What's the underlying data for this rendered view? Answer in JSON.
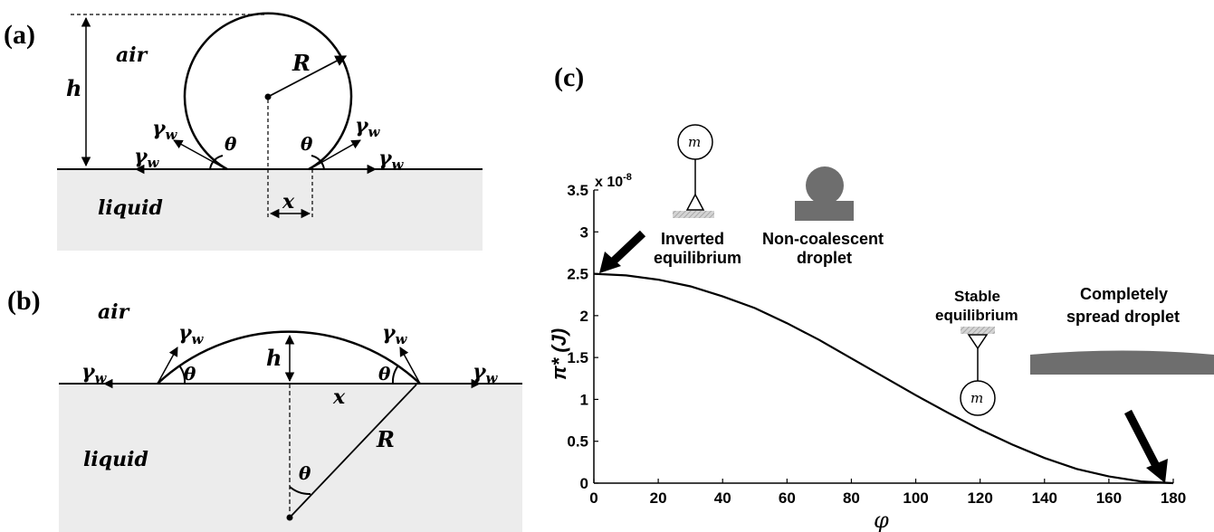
{
  "panels": {
    "a": {
      "label": "(a)",
      "air": "air",
      "liquid": "liquid",
      "h": "h",
      "R": "R",
      "x": "x",
      "theta": "θ",
      "gamma": "γ",
      "gamma_sub": "w"
    },
    "b": {
      "label": "(b)",
      "air": "air",
      "liquid": "liquid",
      "h": "h",
      "R": "R",
      "x": "x",
      "theta": "θ",
      "gamma": "γ",
      "gamma_sub": "w"
    },
    "c": {
      "label": "(c)",
      "inverted_line1": "Inverted",
      "inverted_line2": "equilibrium",
      "noncoal_line1": "Non-coalescent",
      "noncoal_line2": "droplet",
      "stable_line1": "Stable",
      "stable_line2": "equilibrium",
      "spread_line1": "Completely",
      "spread_line2": "spread droplet",
      "mass": "m"
    }
  },
  "chart_data": {
    "type": "line",
    "xlabel": "φ",
    "ylabel": "π* (J)",
    "y_multiplier": "x 10",
    "y_multiplier_exp": "-8",
    "xlim": [
      0,
      180
    ],
    "ylim": [
      0,
      3.5
    ],
    "xticks": [
      "0",
      "20",
      "40",
      "60",
      "80",
      "100",
      "120",
      "140",
      "160",
      "180"
    ],
    "yticks": [
      "0",
      "0.5",
      "1",
      "1.5",
      "2",
      "2.5",
      "3",
      "3.5"
    ],
    "series": [
      {
        "x": [
          0,
          10,
          20,
          30,
          40,
          50,
          60,
          70,
          80,
          90,
          100,
          110,
          120,
          130,
          140,
          150,
          160,
          170,
          180
        ],
        "values": [
          2.5,
          2.48,
          2.43,
          2.35,
          2.23,
          2.09,
          1.91,
          1.71,
          1.49,
          1.27,
          1.05,
          0.84,
          0.64,
          0.46,
          0.3,
          0.17,
          0.08,
          0.02,
          0
        ]
      }
    ],
    "grid": false,
    "line_color": "#000000"
  }
}
